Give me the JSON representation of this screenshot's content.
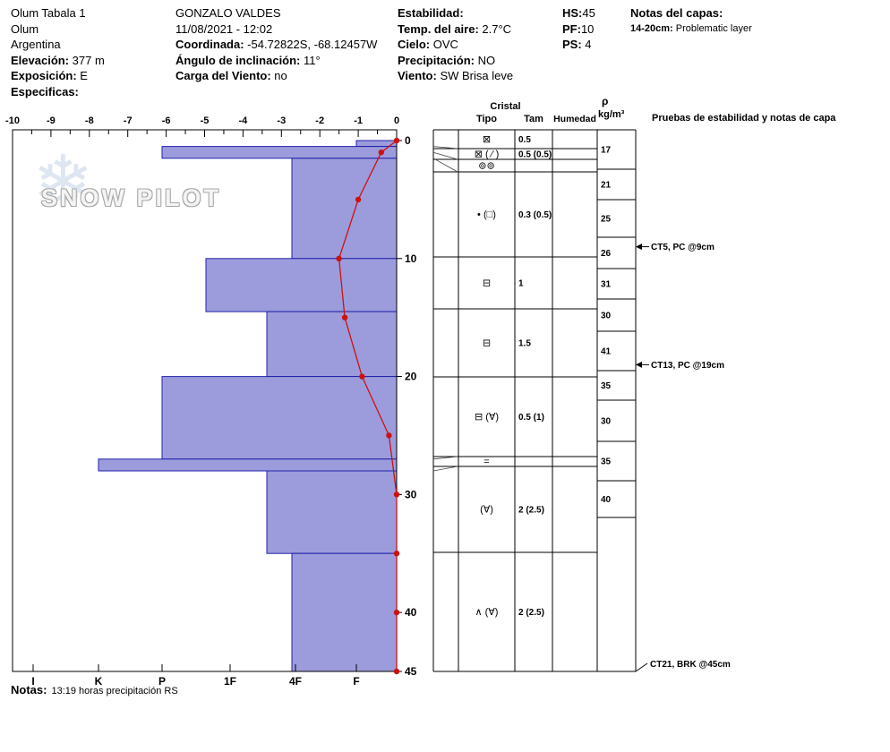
{
  "header": {
    "columns": [
      [
        {
          "label": "",
          "text": "Olum Tabala 1"
        },
        {
          "label": "",
          "text": "Olum"
        },
        {
          "label": "",
          "text": "Argentina"
        },
        {
          "label": "Elevación:",
          "text": " 377 m"
        },
        {
          "label": "Exposición:",
          "text": " E"
        },
        {
          "label": "Especificas:",
          "text": ""
        }
      ],
      [
        {
          "label": "",
          "text": "GONZALO VALDES"
        },
        {
          "label": "",
          "text": "11/08/2021 - 12:02"
        },
        {
          "label": "Coordinada:",
          "text": " -54.72822S, -68.12457W"
        },
        {
          "label": "Ángulo de inclinación:",
          "text": " 11°"
        },
        {
          "label": "Carga del Viento:",
          "text": " no"
        }
      ],
      [
        {
          "label": "Estabilidad:",
          "text": ""
        },
        {
          "label": "Temp. del aire:",
          "text": " 2.7°C"
        },
        {
          "label": "Cielo:",
          "text": " OVC"
        },
        {
          "label": "Precipitación:",
          "text": " NO"
        },
        {
          "label": "Viento:",
          "text": " SW Brisa leve"
        }
      ],
      [
        {
          "label": "HS:",
          "text": "45"
        },
        {
          "label": "PF:",
          "text": "10"
        },
        {
          "label": "PS:",
          "text": " 4"
        }
      ],
      [
        {
          "label": "Notas del capas:",
          "text": ""
        },
        {
          "label": "14-20cm:",
          "text": " Problematic layer"
        }
      ]
    ]
  },
  "watermark": {
    "snowflake_icon": "❄",
    "text": "SNOW PILOT"
  },
  "colors": {
    "bar_fill": "#9c9cdc",
    "bar_stroke": "#2222aa",
    "temp_line": "#cc1111",
    "grid": "#000000",
    "connector": "#444444"
  },
  "chart_data": {
    "type": "snow-profile",
    "title": "",
    "temp_axis": {
      "unit": "°C",
      "min": -10,
      "max": 0,
      "labels": [
        -10,
        -9,
        -8,
        -7,
        -6,
        -5,
        -4,
        -3,
        -2,
        -1,
        0
      ],
      "minor_step": 0.5
    },
    "hardness_axis": {
      "labels": [
        "I",
        "K",
        "P",
        "1F",
        "4F",
        "F"
      ]
    },
    "depth_axis": {
      "unit": "cm",
      "total_depth": 45,
      "labels": [
        0,
        10,
        20,
        30,
        40,
        45
      ]
    },
    "layers": [
      {
        "top_cm": 0,
        "bottom_cm": 0.5,
        "hardness": "F"
      },
      {
        "top_cm": 0.5,
        "bottom_cm": 1.5,
        "hardness": "P"
      },
      {
        "top_cm": 1.5,
        "bottom_cm": 10,
        "hardness": "4F"
      },
      {
        "top_cm": 10,
        "bottom_cm": 14.5,
        "hardness": "P-1F"
      },
      {
        "top_cm": 14.5,
        "bottom_cm": 20,
        "hardness": "1F-4F"
      },
      {
        "top_cm": 20,
        "bottom_cm": 27,
        "hardness": "P"
      },
      {
        "top_cm": 27,
        "bottom_cm": 28,
        "hardness": "K"
      },
      {
        "top_cm": 28,
        "bottom_cm": 35,
        "hardness": "1F-4F"
      },
      {
        "top_cm": 35,
        "bottom_cm": 45,
        "hardness": "4F"
      }
    ],
    "temperature_profile": [
      {
        "depth_cm": 0,
        "temp_c": 0
      },
      {
        "depth_cm": 1,
        "temp_c": -0.4
      },
      {
        "depth_cm": 5,
        "temp_c": -1.0
      },
      {
        "depth_cm": 10,
        "temp_c": -1.5
      },
      {
        "depth_cm": 15,
        "temp_c": -1.35
      },
      {
        "depth_cm": 20,
        "temp_c": -0.9
      },
      {
        "depth_cm": 25,
        "temp_c": -0.2
      },
      {
        "depth_cm": 30,
        "temp_c": 0
      },
      {
        "depth_cm": 35,
        "temp_c": 0
      },
      {
        "depth_cm": 40,
        "temp_c": 0
      },
      {
        "depth_cm": 45,
        "temp_c": 0
      }
    ]
  },
  "table": {
    "headers": {
      "group": "Cristal",
      "tipo": "Tipo",
      "tam": "Tam",
      "humedad": "Humedad",
      "rho_symbol": "ρ",
      "rho_unit": "kg/m³",
      "tests": "Pruebas de estabilidad y notas de capa"
    },
    "crystal_rows": [
      {
        "top_cm": 0,
        "bottom_cm": 0.5,
        "type": "⊠",
        "size": "0.5"
      },
      {
        "top_cm": 0.5,
        "bottom_cm": 1,
        "type": "⊠ ( ⁄ )",
        "size": "0.5 (0.5)"
      },
      {
        "top_cm": 1,
        "bottom_cm": 1.5,
        "type": "⊚⊚",
        "size": ""
      },
      {
        "top_cm": 1.5,
        "bottom_cm": 10,
        "type": "• (□)",
        "size": "0.3 (0.5)"
      },
      {
        "top_cm": 10,
        "bottom_cm": 14.5,
        "type": "⊟",
        "size": "1"
      },
      {
        "top_cm": 14.5,
        "bottom_cm": 20,
        "type": "⊟",
        "size": "1.5"
      },
      {
        "top_cm": 20,
        "bottom_cm": 27,
        "type": "⊟ (∀)",
        "size": "0.5 (1)"
      },
      {
        "top_cm": 27,
        "bottom_cm": 28,
        "type": "=",
        "size": ""
      },
      {
        "top_cm": 28,
        "bottom_cm": 35,
        "type": "(∀)",
        "size": "2 (2.5)"
      },
      {
        "top_cm": 35,
        "bottom_cm": 45,
        "type": "∧ (∀)",
        "size": "2 (2.5)"
      }
    ],
    "densities": [
      17,
      21,
      25,
      26,
      31,
      30,
      41,
      35,
      30,
      35,
      40
    ],
    "tests": [
      {
        "label": "CT5, PC @9cm",
        "depth_cm": 9
      },
      {
        "label": "CT13, PC @19cm",
        "depth_cm": 19
      },
      {
        "label": "CT21, BRK @45cm",
        "depth_cm": 45
      }
    ]
  },
  "notes": {
    "label": "Notas:",
    "text": "13:19 horas precipitación RS"
  }
}
